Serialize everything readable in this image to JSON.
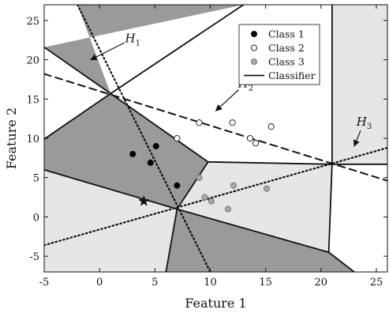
{
  "chart_data": {
    "type": "scatter",
    "xlabel": "Feature 1",
    "ylabel": "Feature 2",
    "xlim": [
      -5,
      26
    ],
    "ylim": [
      -7,
      27
    ],
    "xticks": [
      -5,
      0,
      5,
      10,
      15,
      20,
      25
    ],
    "yticks": [
      -5,
      0,
      5,
      10,
      15,
      20,
      25
    ],
    "grid": false,
    "legend": {
      "placement": "top-right",
      "entries": [
        {
          "label": "Class 1",
          "marker": "filled-circle"
        },
        {
          "label": "Class 2",
          "marker": "open-circle"
        },
        {
          "label": "Class 3",
          "marker": "gray-circle"
        },
        {
          "label": "Classifier",
          "marker": "line"
        }
      ]
    },
    "series": [
      {
        "name": "Class 1",
        "color": "#000000",
        "points": [
          [
            3,
            8
          ],
          [
            4.6,
            6.9
          ],
          [
            5.1,
            9
          ],
          [
            7,
            4
          ]
        ]
      },
      {
        "name": "Class 2",
        "color": "#ffffff",
        "points": [
          [
            7,
            10
          ],
          [
            9,
            12
          ],
          [
            12,
            12
          ],
          [
            13.6,
            10
          ],
          [
            14.1,
            9.4
          ],
          [
            15.5,
            11.5
          ]
        ]
      },
      {
        "name": "Class 3",
        "color": "#a8a8a8",
        "points": [
          [
            9,
            5
          ],
          [
            9.5,
            2.5
          ],
          [
            10.1,
            2
          ],
          [
            12.1,
            4
          ],
          [
            11.6,
            1
          ],
          [
            15.1,
            3.6
          ]
        ]
      }
    ],
    "special_point": {
      "marker": "star",
      "x": 4,
      "y": 2
    },
    "hyperplanes": [
      {
        "label": "H",
        "subscript": "1",
        "style": "dotted",
        "from": [
          -2,
          27
        ],
        "to": [
          10,
          -7
        ]
      },
      {
        "label": "H",
        "subscript": "2",
        "style": "dashed",
        "from": [
          -5,
          18.2
        ],
        "to": [
          26,
          4.6
        ]
      },
      {
        "label": "H",
        "subscript": "3",
        "style": "dotted",
        "from": [
          -5,
          -3.6
        ],
        "to": [
          26,
          8.8
        ]
      }
    ],
    "hyperplane_labels": [
      {
        "label": "H",
        "subscript": "1",
        "x": 3,
        "y": 22.2,
        "arrow_to": [
          -0.8,
          20
        ]
      },
      {
        "label": "H",
        "subscript": "2",
        "x": 13.2,
        "y": 16.5,
        "arrow_to": [
          10.5,
          13.5
        ]
      },
      {
        "label": "H",
        "subscript": "3",
        "x": 23.9,
        "y": 11.6,
        "arrow_to": [
          23,
          9
        ]
      }
    ],
    "regions": {
      "dark": [
        [
          [
            -5,
            21.6
          ],
          [
            1,
            15.7
          ],
          [
            -2,
            27
          ],
          [
            13,
            27
          ]
        ],
        [
          [
            -5,
            9.9
          ],
          [
            1,
            15.7
          ],
          [
            9.8,
            7
          ],
          [
            7,
            1
          ],
          [
            -5,
            6
          ]
        ],
        [
          [
            6,
            -7
          ],
          [
            7,
            1
          ],
          [
            20.7,
            -4.5
          ],
          [
            23,
            -7
          ]
        ]
      ],
      "light": [
        [
          [
            -5,
            6
          ],
          [
            7,
            1
          ],
          [
            6,
            -7
          ],
          [
            -5,
            -7
          ]
        ],
        [
          [
            7,
            1
          ],
          [
            9.8,
            7
          ],
          [
            21,
            6.7
          ],
          [
            20.7,
            -4.5
          ]
        ],
        [
          [
            21,
            6.7
          ],
          [
            21,
            27
          ],
          [
            26,
            27
          ],
          [
            26,
            6.7
          ]
        ]
      ]
    },
    "classifier_edges": [
      [
        [
          -5,
          21.6
        ],
        [
          1,
          15.7
        ]
      ],
      [
        [
          1,
          15.7
        ],
        [
          13,
          27
        ]
      ],
      [
        [
          -5,
          9.9
        ],
        [
          1,
          15.7
        ]
      ],
      [
        [
          1,
          15.7
        ],
        [
          9.8,
          7
        ]
      ],
      [
        [
          9.8,
          7
        ],
        [
          7,
          1
        ]
      ],
      [
        [
          -5,
          6
        ],
        [
          7,
          1
        ]
      ],
      [
        [
          7,
          1
        ],
        [
          6,
          -7
        ]
      ],
      [
        [
          9.8,
          7
        ],
        [
          21,
          6.7
        ]
      ],
      [
        [
          21,
          6.7
        ],
        [
          26,
          6.7
        ]
      ],
      [
        [
          21,
          6.7
        ],
        [
          21,
          27
        ]
      ],
      [
        [
          7,
          1
        ],
        [
          20.7,
          -4.5
        ]
      ],
      [
        [
          20.7,
          -4.5
        ],
        [
          21,
          6.7
        ]
      ],
      [
        [
          20.7,
          -4.5
        ],
        [
          23,
          -7
        ]
      ]
    ]
  }
}
